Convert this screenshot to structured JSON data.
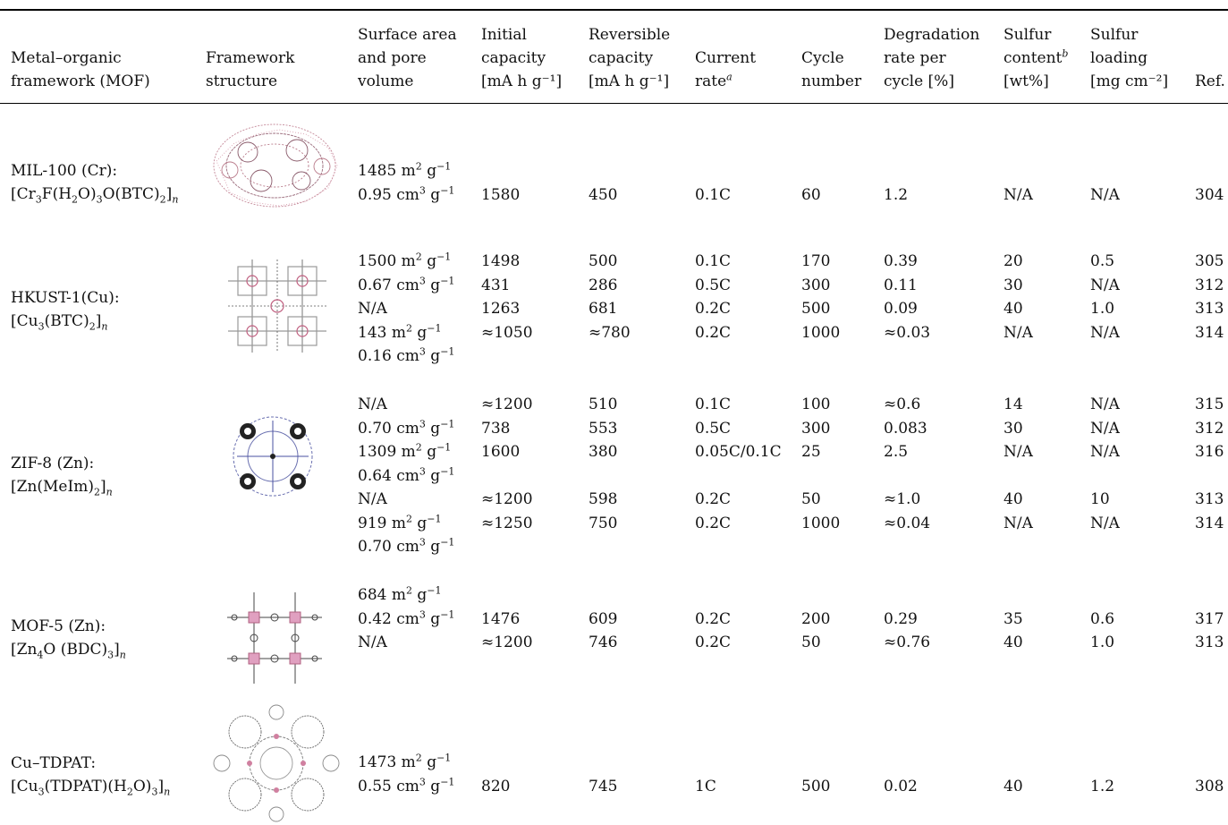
{
  "header": {
    "mof": [
      "Metal–organic",
      "framework (MOF)"
    ],
    "structure": [
      "Framework",
      "structure"
    ],
    "surface": [
      "Surface area",
      "and pore",
      "volume"
    ],
    "initial": [
      "Initial",
      "capacity",
      "[mA h g⁻¹]"
    ],
    "reversible": [
      "Reversible",
      "capacity",
      "[mA h g⁻¹]"
    ],
    "current": [
      "Current",
      "rate"
    ],
    "current_sup": "a",
    "cycle": [
      "Cycle",
      "number"
    ],
    "degradation": [
      "Degradation",
      "rate per",
      "cycle [%]"
    ],
    "sulfur_content": [
      "Sulfur",
      "content",
      "[wt%]"
    ],
    "sulfur_content_sup": "b",
    "sulfur_loading": [
      "Sulfur",
      "loading",
      "[mg cm⁻²]"
    ],
    "ref": "Ref."
  },
  "rows": [
    {
      "name": "MIL-100 (Cr):",
      "formula": "[Cr₃F(H₂O)₃O(BTC)₂]n",
      "structure_icon": "mil-100-structure",
      "lines": [
        {
          "surface": "1485 m² g⁻¹"
        },
        {
          "surface": "0.95 cm³ g⁻¹",
          "initial": "1580",
          "reversible": "450",
          "rate": "0.1C",
          "cycle": "60",
          "deg": "1.2",
          "content": "N/A",
          "loading": "N/A",
          "ref": "304"
        }
      ]
    },
    {
      "name": "HKUST-1(Cu):",
      "formula": "[Cu₃(BTC)₂]n",
      "structure_icon": "hkust-1-structure",
      "lines": [
        {
          "surface": "1500 m² g⁻¹",
          "initial": "1498",
          "reversible": "500",
          "rate": "0.1C",
          "cycle": "170",
          "deg": "0.39",
          "content": "20",
          "loading": "0.5",
          "ref": "305"
        },
        {
          "surface": "0.67 cm³ g⁻¹",
          "initial": "431",
          "reversible": "286",
          "rate": "0.5C",
          "cycle": "300",
          "deg": "0.11",
          "content": "30",
          "loading": "N/A",
          "ref": "312"
        },
        {
          "surface": "N/A",
          "initial": "1263",
          "reversible": "681",
          "rate": "0.2C",
          "cycle": "500",
          "deg": "0.09",
          "content": "40",
          "loading": "1.0",
          "ref": "313"
        },
        {
          "surface": "143 m² g⁻¹",
          "initial": "≈1050",
          "reversible": "≈780",
          "rate": "0.2C",
          "cycle": "1000",
          "deg": "≈0.03",
          "content": "N/A",
          "loading": "N/A",
          "ref": "314"
        },
        {
          "surface": "0.16 cm³ g⁻¹"
        }
      ]
    },
    {
      "name": "ZIF-8 (Zn):",
      "formula": "[Zn(MeIm)₂]n",
      "structure_icon": "zif-8-structure",
      "lines": [
        {
          "surface": "N/A",
          "initial": "≈1200",
          "reversible": "510",
          "rate": "0.1C",
          "cycle": "100",
          "deg": "≈0.6",
          "content": "14",
          "loading": "N/A",
          "ref": "315"
        },
        {
          "surface": "0.70 cm³ g⁻¹",
          "initial": "738",
          "reversible": "553",
          "rate": "0.5C",
          "cycle": "300",
          "deg": "0.083",
          "content": "30",
          "loading": "N/A",
          "ref": "312"
        },
        {
          "surface": "1309 m² g⁻¹",
          "initial": "1600",
          "reversible": "380",
          "rate": "0.05C/0.1C",
          "cycle": "25",
          "deg": "2.5",
          "content": "N/A",
          "loading": "N/A",
          "ref": "316"
        },
        {
          "surface": "0.64 cm³ g⁻¹"
        },
        {
          "surface": "N/A",
          "initial": "≈1200",
          "reversible": "598",
          "rate": "0.2C",
          "cycle": "50",
          "deg": "≈1.0",
          "content": "40",
          "loading": "10",
          "ref": "313"
        },
        {
          "surface": "919 m² g⁻¹",
          "initial": "≈1250",
          "reversible": "750",
          "rate": "0.2C",
          "cycle": "1000",
          "deg": "≈0.04",
          "content": "N/A",
          "loading": "N/A",
          "ref": "314"
        },
        {
          "surface": "0.70 cm³ g⁻¹"
        }
      ]
    },
    {
      "name": "MOF-5 (Zn):",
      "formula": "[Zn₄O (BDC)₃]n",
      "structure_icon": "mof-5-structure",
      "lines": [
        {
          "surface": "684 m² g⁻¹"
        },
        {
          "surface": "0.42 cm³ g⁻¹",
          "initial": "1476",
          "reversible": "609",
          "rate": "0.2C",
          "cycle": "200",
          "deg": "0.29",
          "content": "35",
          "loading": "0.6",
          "ref": "317"
        },
        {
          "surface": "N/A",
          "initial": "≈1200",
          "reversible": "746",
          "rate": "0.2C",
          "cycle": "50",
          "deg": "≈0.76",
          "content": "40",
          "loading": "1.0",
          "ref": "313"
        }
      ]
    },
    {
      "name": "Cu–TDPAT:",
      "formula": "[Cu₃(TDPAT)(H₂O)₃]n",
      "structure_icon": "cu-tdpat-structure",
      "lines": [
        {
          "surface": "1473 m² g⁻¹"
        },
        {
          "surface": "0.55 cm³ g⁻¹",
          "initial": "820",
          "reversible": "745",
          "rate": "1C",
          "cycle": "500",
          "deg": "0.02",
          "content": "40",
          "loading": "1.2",
          "ref": "308"
        }
      ]
    }
  ]
}
